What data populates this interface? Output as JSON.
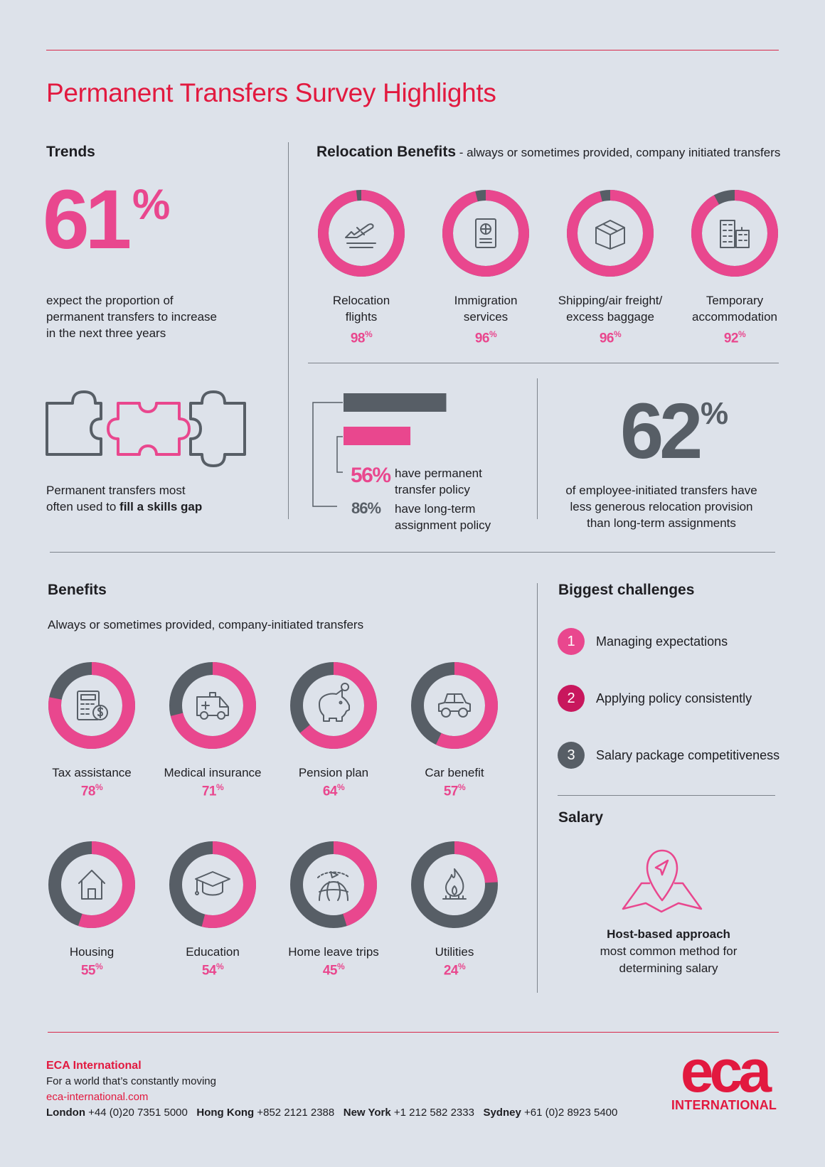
{
  "title": "Permanent Transfers Survey Highlights",
  "trends": {
    "heading": "Trends",
    "big_value": "61",
    "big_unit": "%",
    "desc_lines": [
      "expect the proportion of",
      "permanent transfers to increase",
      "in the next three years"
    ],
    "puzzle_text_line1": "Permanent transfers most",
    "puzzle_text_line2_pre": "often used to ",
    "puzzle_text_line2_bold": "fill a skills gap"
  },
  "relocation": {
    "heading": "Relocation Benefits",
    "subheading": " - always or sometimes provided, company initiated transfers",
    "items": [
      {
        "label1": "Relocation",
        "label2": "flights",
        "value": "98",
        "unit": "%",
        "icon": "airplane-takeoff-icon"
      },
      {
        "label1": "Immigration",
        "label2": "services",
        "value": "96",
        "unit": "%",
        "icon": "passport-icon"
      },
      {
        "label1": "Shipping/air freight/",
        "label2": "excess baggage",
        "value": "96",
        "unit": "%",
        "icon": "box-icon"
      },
      {
        "label1": "Temporary",
        "label2": "accommodation",
        "value": "92",
        "unit": "%",
        "icon": "buildings-icon"
      }
    ]
  },
  "policy": {
    "pink_value": "56%",
    "pink_label1": "have permanent",
    "pink_label2": "transfer policy",
    "grey_value": "86%",
    "grey_label1": "have long-term",
    "grey_label2": "assignment policy"
  },
  "employee": {
    "big_value": "62",
    "big_unit": "%",
    "lines": [
      "of employee-initiated transfers have",
      "less generous relocation provision",
      "than long-term assignments"
    ]
  },
  "benefits": {
    "heading": "Benefits",
    "subheading": "Always or sometimes provided, company-initiated transfers",
    "items": [
      {
        "label": "Tax assistance",
        "value": "78",
        "unit": "%",
        "icon": "calculator-icon"
      },
      {
        "label": "Medical insurance",
        "value": "71",
        "unit": "%",
        "icon": "ambulance-icon"
      },
      {
        "label": "Pension plan",
        "value": "64",
        "unit": "%",
        "icon": "piggy-bank-icon"
      },
      {
        "label": "Car benefit",
        "value": "57",
        "unit": "%",
        "icon": "car-icon"
      },
      {
        "label": "Housing",
        "value": "55",
        "unit": "%",
        "icon": "house-icon"
      },
      {
        "label": "Education",
        "value": "54",
        "unit": "%",
        "icon": "graduation-cap-icon"
      },
      {
        "label": "Home leave trips",
        "value": "45",
        "unit": "%",
        "icon": "globe-plane-icon"
      },
      {
        "label": "Utilities",
        "value": "24",
        "unit": "%",
        "icon": "flame-icon"
      }
    ]
  },
  "challenges": {
    "heading": "Biggest challenges",
    "items": [
      {
        "num": "1",
        "text": "Managing expectations",
        "color": "#e9478e"
      },
      {
        "num": "2",
        "text": "Applying policy consistently",
        "color": "#c8175d"
      },
      {
        "num": "3",
        "text": "Salary package competitiveness",
        "color": "#575e66"
      }
    ]
  },
  "salary": {
    "heading": "Salary",
    "bold_line": "Host-based approach",
    "line2": "most common method for",
    "line3": "determining salary"
  },
  "footer": {
    "company": "ECA International",
    "tagline": "For a world that’s constantly moving",
    "url": "eca-international.com",
    "offices": [
      {
        "city": "London",
        "phone": "+44 (0)20 7351 5000"
      },
      {
        "city": "Hong Kong",
        "phone": "+852 2121 2388"
      },
      {
        "city": "New York",
        "phone": "+1 212 582 2333"
      },
      {
        "city": "Sydney",
        "phone": "+61 (0)2 8923 5400"
      }
    ],
    "logo_text": "eca",
    "logo_sub": "INTERNATIONAL"
  },
  "colors": {
    "pink": "#e9478e",
    "grey": "#575e66",
    "red": "#e2193f",
    "background": "#dde2ea"
  },
  "chart_data": [
    {
      "type": "pie",
      "title": "Relocation Benefits",
      "categories": [
        "Relocation flights",
        "Immigration services",
        "Shipping/air freight/ excess baggage",
        "Temporary accommodation"
      ],
      "values": [
        98,
        96,
        96,
        92
      ]
    },
    {
      "type": "bar",
      "categories": [
        "have long-term assignment policy",
        "have permanent transfer policy"
      ],
      "values": [
        86,
        56
      ]
    },
    {
      "type": "pie",
      "title": "Benefits",
      "categories": [
        "Tax assistance",
        "Medical insurance",
        "Pension plan",
        "Car benefit",
        "Housing",
        "Education",
        "Home leave trips",
        "Utilities"
      ],
      "values": [
        78,
        71,
        64,
        57,
        55,
        54,
        45,
        24
      ]
    }
  ]
}
